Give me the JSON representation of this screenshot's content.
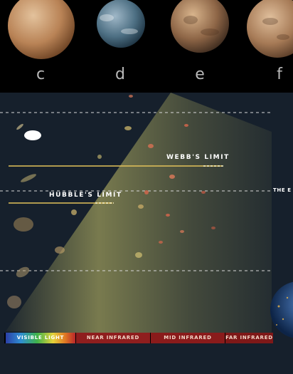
{
  "planets": [
    {
      "label": "c",
      "colors": [
        "#e3c29c",
        "#b98356",
        "#6d4324"
      ]
    },
    {
      "label": "d",
      "colors": [
        "#9fb7c7",
        "#4d6f83",
        "#1e3443"
      ]
    },
    {
      "label": "e",
      "colors": [
        "#d8b48c",
        "#8d6546",
        "#3f2c1f"
      ]
    },
    {
      "label": "f",
      "colors": [
        "#e0bf9c",
        "#a67a56",
        "#5a3d28"
      ]
    }
  ],
  "limits": {
    "webb": "WEBB'S LIMIT",
    "hubble": "HUBBLE'S LIMIT",
    "edge_label": "THE E"
  },
  "spectrum": [
    {
      "label": "VISIBLE LIGHT"
    },
    {
      "label": "NEAR INFRARED"
    },
    {
      "label": "MID INFRARED"
    },
    {
      "label": "FAR INFRARED"
    }
  ],
  "colors": {
    "background": "#16202c",
    "limit_line": "#e3c25a",
    "cone_glow": "#c9c46a",
    "dashed_line": "#d8d8d8"
  }
}
